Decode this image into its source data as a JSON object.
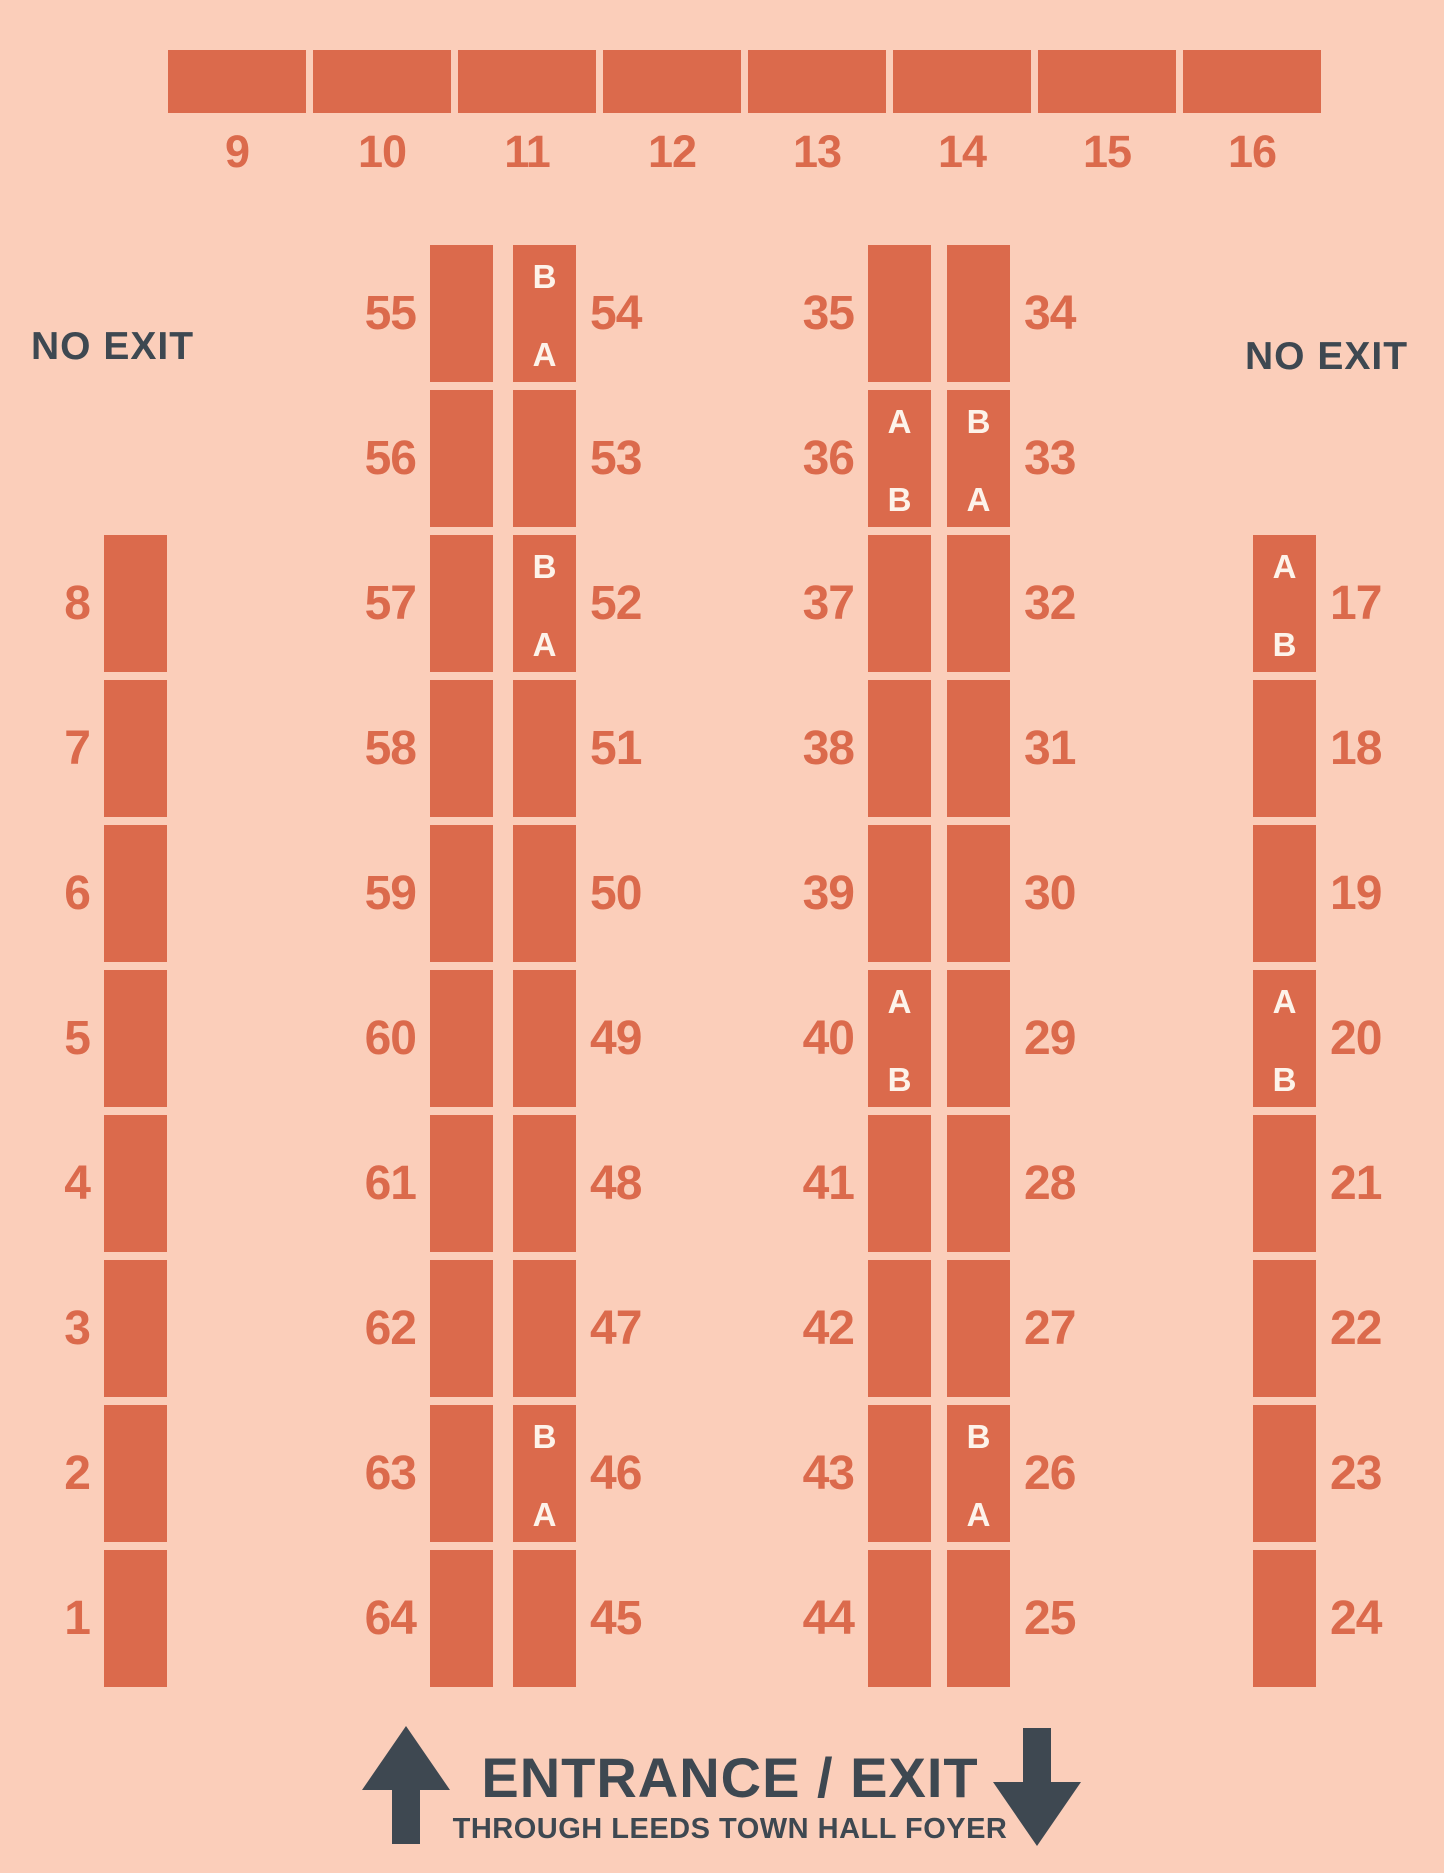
{
  "colors": {
    "background": "#fbceba",
    "stall": "#db6a4c",
    "number_text": "#db6a4c",
    "letter_text": "#fdf3ea",
    "dark_text": "#3e4851"
  },
  "icons": {
    "entrance_up": "arrow-up-icon",
    "entrance_down": "arrow-down-icon"
  },
  "labels": {
    "no_exit_left": "NO EXIT",
    "no_exit_right": "NO EXIT"
  },
  "entrance": {
    "title": "ENTRANCE / EXIT",
    "subtitle": "THROUGH LEEDS TOWN HALL FOYER"
  },
  "top_row": [
    {
      "number": "9"
    },
    {
      "number": "10"
    },
    {
      "number": "11"
    },
    {
      "number": "12"
    },
    {
      "number": "13"
    },
    {
      "number": "14"
    },
    {
      "number": "15"
    },
    {
      "number": "16"
    }
  ],
  "left_column": [
    {
      "number": "8"
    },
    {
      "number": "7"
    },
    {
      "number": "6"
    },
    {
      "number": "5"
    },
    {
      "number": "4"
    },
    {
      "number": "3"
    },
    {
      "number": "2"
    },
    {
      "number": "1"
    }
  ],
  "mid_left_pair_left": [
    {
      "number": "55"
    },
    {
      "number": "56"
    },
    {
      "number": "57"
    },
    {
      "number": "58"
    },
    {
      "number": "59"
    },
    {
      "number": "60"
    },
    {
      "number": "61"
    },
    {
      "number": "62"
    },
    {
      "number": "63"
    },
    {
      "number": "64"
    }
  ],
  "mid_left_pair_right": [
    {
      "number": "54",
      "letters": [
        "B",
        "A"
      ]
    },
    {
      "number": "53"
    },
    {
      "number": "52",
      "letters": [
        "B",
        "A"
      ]
    },
    {
      "number": "51"
    },
    {
      "number": "50"
    },
    {
      "number": "49"
    },
    {
      "number": "48"
    },
    {
      "number": "47"
    },
    {
      "number": "46",
      "letters": [
        "B",
        "A"
      ]
    },
    {
      "number": "45"
    }
  ],
  "mid_right_pair_left": [
    {
      "number": "35"
    },
    {
      "number": "36",
      "letters": [
        "A",
        "B"
      ]
    },
    {
      "number": "37"
    },
    {
      "number": "38"
    },
    {
      "number": "39"
    },
    {
      "number": "40",
      "letters": [
        "A",
        "B"
      ]
    },
    {
      "number": "41"
    },
    {
      "number": "42"
    },
    {
      "number": "43"
    },
    {
      "number": "44"
    }
  ],
  "mid_right_pair_right": [
    {
      "number": "34"
    },
    {
      "number": "33",
      "letters": [
        "B",
        "A"
      ]
    },
    {
      "number": "32"
    },
    {
      "number": "31"
    },
    {
      "number": "30"
    },
    {
      "number": "29"
    },
    {
      "number": "28"
    },
    {
      "number": "27"
    },
    {
      "number": "26",
      "letters": [
        "B",
        "A"
      ]
    },
    {
      "number": "25"
    }
  ],
  "right_column": [
    {
      "number": "17",
      "letters": [
        "A",
        "B"
      ]
    },
    {
      "number": "18"
    },
    {
      "number": "19"
    },
    {
      "number": "20",
      "letters": [
        "A",
        "B"
      ]
    },
    {
      "number": "21"
    },
    {
      "number": "22"
    },
    {
      "number": "23"
    },
    {
      "number": "24"
    }
  ]
}
